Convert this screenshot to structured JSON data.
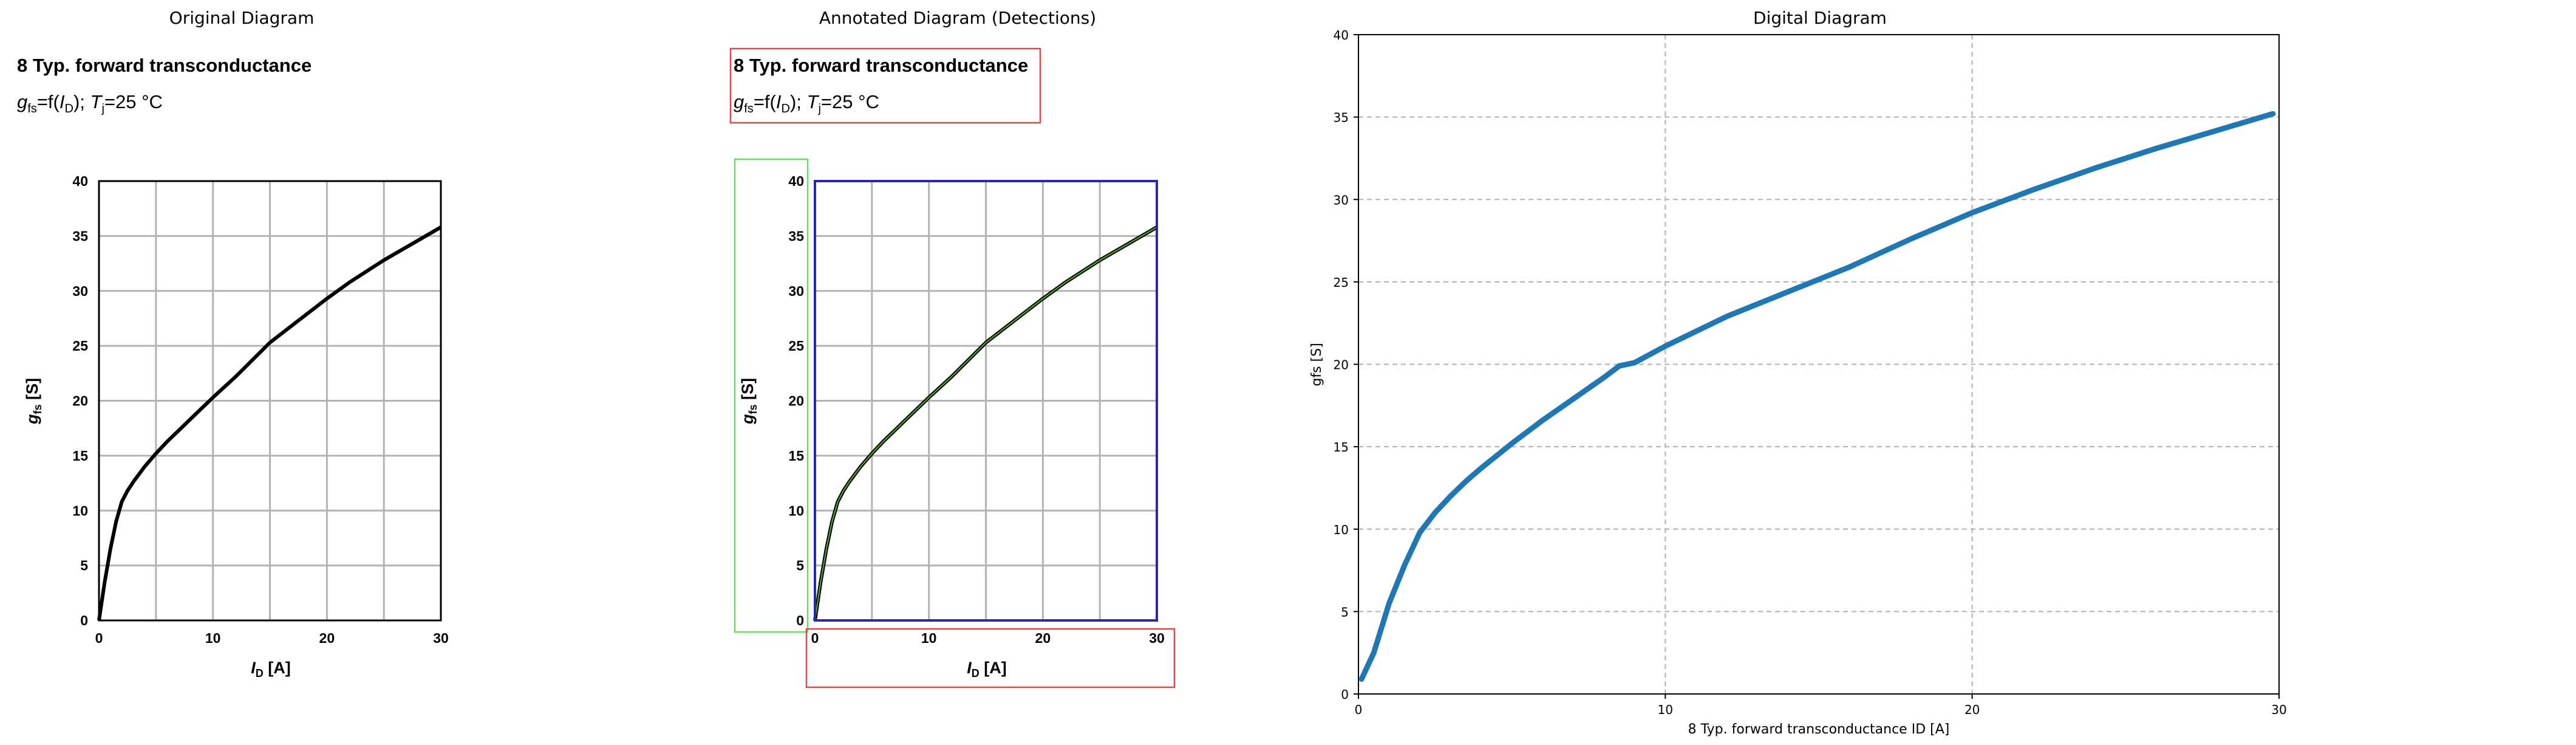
{
  "panels": {
    "original": "Original Diagram",
    "annotated": "Annotated Diagram (Detections)",
    "digital": "Digital Diagram"
  },
  "source_chart": {
    "title": "8 Typ. forward transconductance",
    "subtitle_parts": [
      "g",
      "fs",
      "=f(",
      "I",
      "D",
      "); ",
      "T",
      "j",
      "=25 °C"
    ],
    "xlabel_parts": [
      "I",
      "D",
      " [A]"
    ],
    "ylabel_parts": [
      "g",
      "fs",
      " [S]"
    ]
  },
  "chart_data": [
    {
      "type": "line",
      "panel": "Original Diagram",
      "title": "8 Typ. forward transconductance",
      "xlabel": "ID [A]",
      "ylabel": "gfs [S]",
      "xlim": [
        0,
        30
      ],
      "ylim": [
        0,
        40
      ],
      "xticks": [
        0,
        10,
        20,
        30
      ],
      "yticks": [
        0,
        5,
        10,
        15,
        20,
        25,
        30,
        35,
        40
      ],
      "grid": true,
      "series": [
        {
          "x": [
            0,
            0.5,
            1,
            1.5,
            2,
            2.5,
            3,
            4,
            5,
            6,
            7,
            8,
            10,
            12,
            15,
            18,
            20,
            22,
            25,
            28,
            30
          ],
          "y": [
            0,
            3.5,
            6.5,
            9,
            10.8,
            11.8,
            12.6,
            14,
            15.2,
            16.3,
            17.3,
            18.3,
            20.3,
            22.2,
            25.3,
            27.7,
            29.3,
            30.8,
            32.8,
            34.6,
            35.8
          ]
        }
      ]
    },
    {
      "type": "line",
      "panel": "Digital Diagram",
      "title": "",
      "xlabel": "8 Typ. forward transconductance ID [A]",
      "ylabel": "gfs [S]",
      "xlim": [
        0,
        30
      ],
      "ylim": [
        0,
        40
      ],
      "xticks": [
        0,
        10,
        20,
        30
      ],
      "yticks": [
        0,
        5,
        10,
        15,
        20,
        25,
        30,
        35,
        40
      ],
      "grid": true,
      "color": "#1f77b4",
      "series": [
        {
          "x": [
            0.1,
            0.5,
            1,
            1.5,
            2,
            2.5,
            3,
            3.5,
            4,
            5,
            6,
            7,
            8,
            8.5,
            9,
            9.5,
            10,
            12,
            14,
            16,
            18,
            20,
            22,
            24,
            26,
            28,
            29.8
          ],
          "y": [
            0.9,
            2.5,
            5.5,
            7.8,
            9.8,
            11.0,
            12.0,
            12.9,
            13.7,
            15.2,
            16.6,
            17.9,
            19.2,
            19.9,
            20.1,
            20.6,
            21.1,
            22.9,
            24.4,
            25.9,
            27.6,
            29.2,
            30.6,
            31.9,
            33.1,
            34.2,
            35.2
          ]
        }
      ]
    }
  ]
}
